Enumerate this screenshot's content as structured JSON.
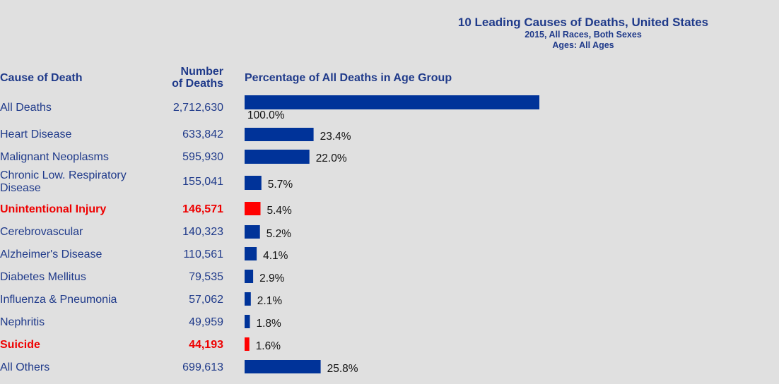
{
  "colors": {
    "bar": "#003399",
    "highlight_bar": "#ff0000",
    "text": "#1f3a8a",
    "highlight_text": "#ee0000"
  },
  "chart_data": {
    "type": "bar",
    "orientation": "horizontal",
    "title": "10 Leading Causes of Deaths, United States",
    "subtitle_lines": [
      "2015, All Races, Both Sexes",
      "Ages: All Ages"
    ],
    "headers": {
      "cause": "Cause of Death",
      "number_line1": "Number",
      "number_line2": "of Deaths",
      "percentage": "Percentage of All Deaths in Age Group"
    },
    "xlim": [
      0,
      100
    ],
    "rows": [
      {
        "cause": "All Deaths",
        "count": "2,712,630",
        "pct": 100.0,
        "pct_label": "100.0%",
        "highlight": false
      },
      {
        "cause": "Heart Disease",
        "count": "633,842",
        "pct": 23.4,
        "pct_label": "23.4%",
        "highlight": false
      },
      {
        "cause": "Malignant Neoplasms",
        "count": "595,930",
        "pct": 22.0,
        "pct_label": "22.0%",
        "highlight": false
      },
      {
        "cause": "Chronic Low. Respiratory Disease",
        "count": "155,041",
        "pct": 5.7,
        "pct_label": "5.7%",
        "highlight": false
      },
      {
        "cause": "Unintentional Injury",
        "count": "146,571",
        "pct": 5.4,
        "pct_label": "5.4%",
        "highlight": true
      },
      {
        "cause": "Cerebrovascular",
        "count": "140,323",
        "pct": 5.2,
        "pct_label": "5.2%",
        "highlight": false
      },
      {
        "cause": "Alzheimer's Disease",
        "count": "110,561",
        "pct": 4.1,
        "pct_label": "4.1%",
        "highlight": false
      },
      {
        "cause": "Diabetes Mellitus",
        "count": "79,535",
        "pct": 2.9,
        "pct_label": "2.9%",
        "highlight": false
      },
      {
        "cause": "Influenza & Pneumonia",
        "count": "57,062",
        "pct": 2.1,
        "pct_label": "2.1%",
        "highlight": false
      },
      {
        "cause": "Nephritis",
        "count": "49,959",
        "pct": 1.8,
        "pct_label": "1.8%",
        "highlight": false
      },
      {
        "cause": "Suicide",
        "count": "44,193",
        "pct": 1.6,
        "pct_label": "1.6%",
        "highlight": true
      },
      {
        "cause": "All Others",
        "count": "699,613",
        "pct": 25.8,
        "pct_label": "25.8%",
        "highlight": false
      }
    ]
  }
}
